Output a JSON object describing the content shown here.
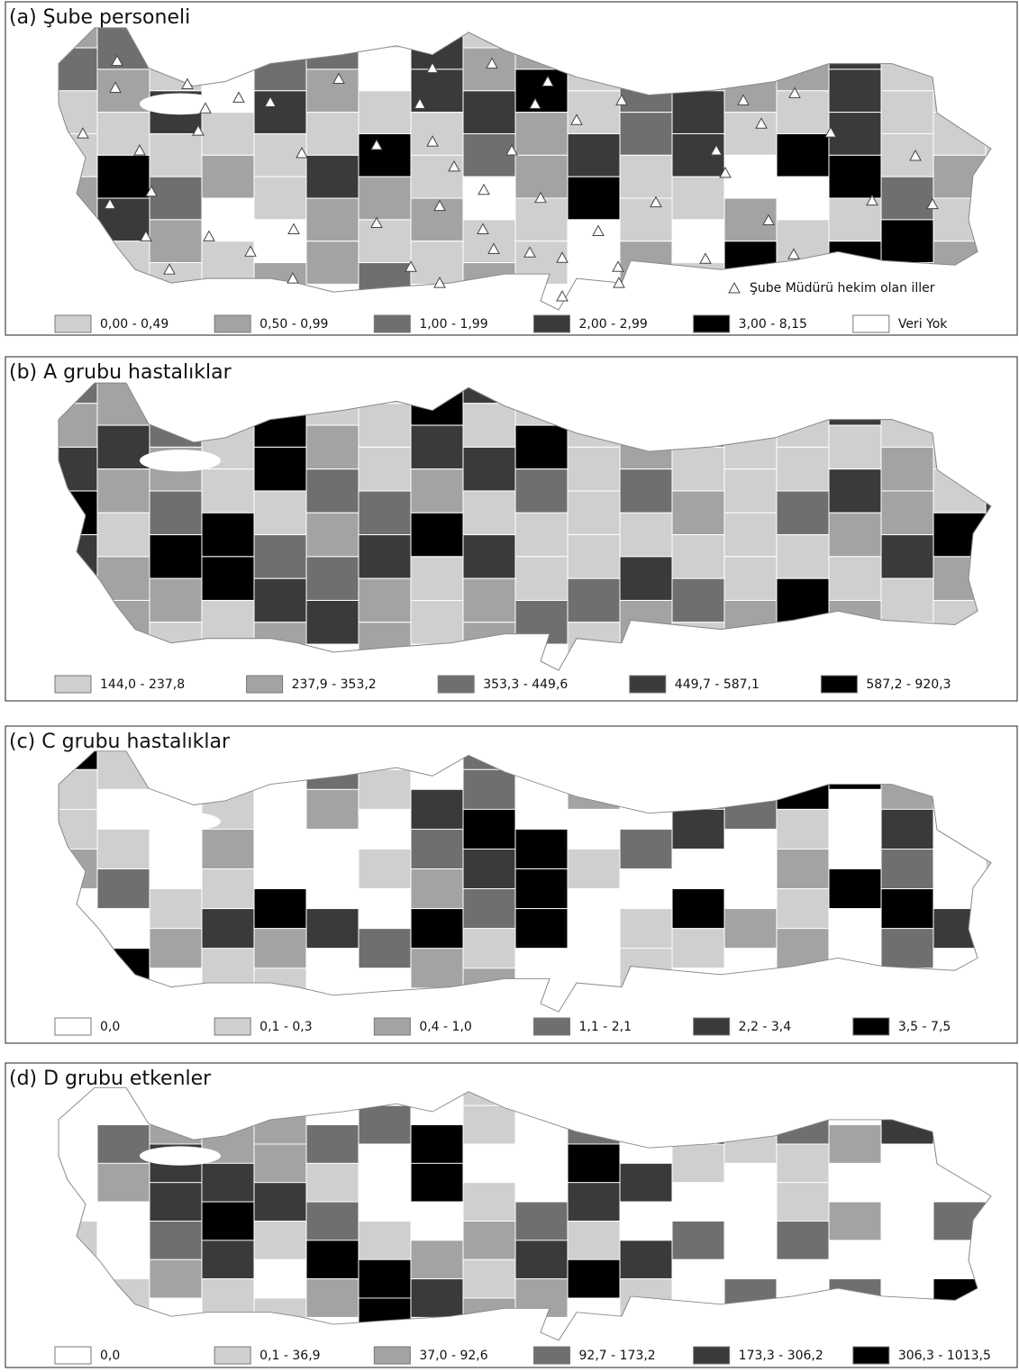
{
  "panels": [
    {
      "title": "(a) Şube personeli",
      "note": "Şube Müdürü hekim olan iller",
      "legend": [
        {
          "label": "0,00 - 0,49",
          "color": "#cfcfcf"
        },
        {
          "label": "0,50 - 0,99",
          "color": "#a3a3a3"
        },
        {
          "label": "1,00 - 1,99",
          "color": "#6f6f6f"
        },
        {
          "label": "2,00 - 2,99",
          "color": "#3a3a3a"
        },
        {
          "label": "3,00 - 8,15",
          "color": "#000000"
        },
        {
          "label": "Veri Yok",
          "color": "#ffffff"
        }
      ]
    },
    {
      "title": "(b) A grubu hastalıklar",
      "legend": [
        {
          "label": "144,0 - 237,8",
          "color": "#cfcfcf"
        },
        {
          "label": "237,9 - 353,2",
          "color": "#a3a3a3"
        },
        {
          "label": "353,3 - 449,6",
          "color": "#6f6f6f"
        },
        {
          "label": "449,7 - 587,1",
          "color": "#3a3a3a"
        },
        {
          "label": "587,2 - 920,3",
          "color": "#000000"
        }
      ]
    },
    {
      "title": "(c) C grubu hastalıklar",
      "legend": [
        {
          "label": "0,0",
          "color": "#ffffff"
        },
        {
          "label": "0,1 - 0,3",
          "color": "#cfcfcf"
        },
        {
          "label": "0,4 - 1,0",
          "color": "#a3a3a3"
        },
        {
          "label": "1,1 - 2,1",
          "color": "#6f6f6f"
        },
        {
          "label": "2,2 - 3,4",
          "color": "#3a3a3a"
        },
        {
          "label": "3,5 - 7,5",
          "color": "#000000"
        }
      ]
    },
    {
      "title": "(d) D grubu etkenler",
      "legend": [
        {
          "label": "0,0",
          "color": "#ffffff"
        },
        {
          "label": "0,1 - 36,9",
          "color": "#cfcfcf"
        },
        {
          "label": "37,0 - 92,6",
          "color": "#a3a3a3"
        },
        {
          "label": "92,7 - 173,2",
          "color": "#6f6f6f"
        },
        {
          "label": "173,3 - 306,2",
          "color": "#3a3a3a"
        },
        {
          "label": "306,3 - 1013,5",
          "color": "#000000"
        }
      ]
    }
  ]
}
